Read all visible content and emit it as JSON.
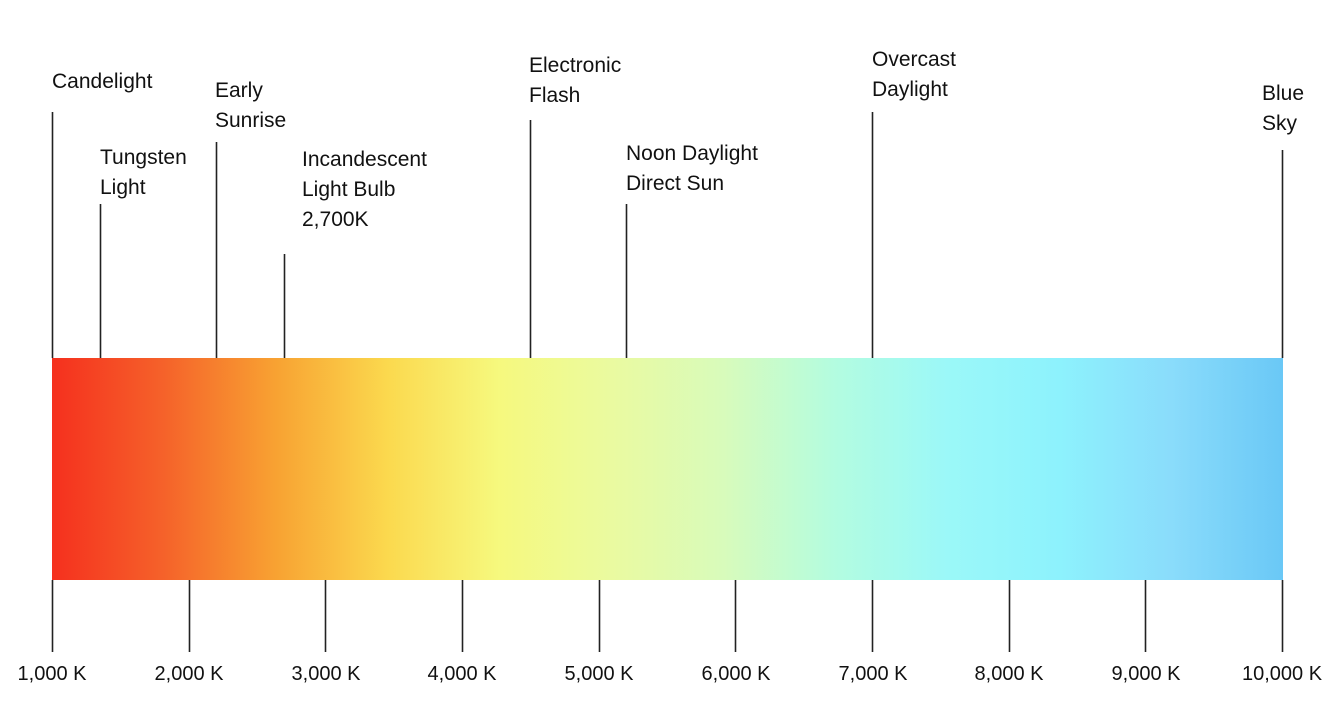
{
  "axis": {
    "min_k": 1000,
    "max_k": 10000,
    "ticks": [
      {
        "value": 1000,
        "label": "1,000 K"
      },
      {
        "value": 2000,
        "label": "2,000 K"
      },
      {
        "value": 3000,
        "label": "3,000 K"
      },
      {
        "value": 4000,
        "label": "4,000 K"
      },
      {
        "value": 5000,
        "label": "5,000 K"
      },
      {
        "value": 6000,
        "label": "6,000 K"
      },
      {
        "value": 7000,
        "label": "7,000 K"
      },
      {
        "value": 8000,
        "label": "8,000 K"
      },
      {
        "value": 9000,
        "label": "9,000 K"
      },
      {
        "value": 10000,
        "label": "10,000 K"
      }
    ]
  },
  "gradient_colors": [
    "#f5301e",
    "#f5622a",
    "#f8a232",
    "#fbd94e",
    "#f6f97e",
    "#eafaa0",
    "#d8fbbb",
    "#b3fce0",
    "#9bf8f8",
    "#8df2fd",
    "#8adcfb",
    "#6ac8f6"
  ],
  "markers": [
    {
      "id": "candlelight",
      "kelvin": 1000,
      "label": "Candelight"
    },
    {
      "id": "tungsten",
      "kelvin": 1350,
      "label": "Tungsten\nLight"
    },
    {
      "id": "early-sunrise",
      "kelvin": 2200,
      "label": "Early\nSunrise"
    },
    {
      "id": "incandescent",
      "kelvin": 2700,
      "label": "Incandescent\nLight Bulb\n2,700K"
    },
    {
      "id": "electronic-flash",
      "kelvin": 4500,
      "label": "Electronic\nFlash"
    },
    {
      "id": "noon-daylight",
      "kelvin": 5200,
      "label": "Noon Daylight\nDirect Sun"
    },
    {
      "id": "overcast",
      "kelvin": 7000,
      "label": "Overcast\nDaylight"
    },
    {
      "id": "blue-sky",
      "kelvin": 10000,
      "label": "Blue\nSky"
    }
  ]
}
